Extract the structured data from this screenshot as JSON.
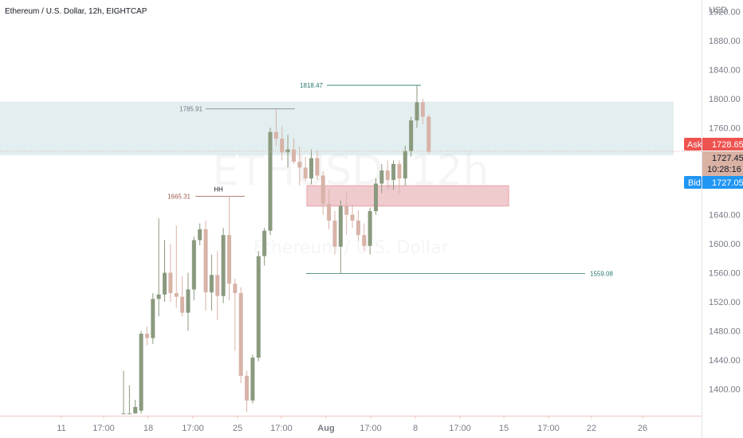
{
  "header": {
    "symbol_title": "Ethereum / U.S. Dollar, 12h, EIGHTCAP",
    "currency": "USD"
  },
  "watermark": {
    "symbol": "ETHUSD, 12h",
    "description": "Ethereum / U.S. Dollar"
  },
  "price_tags": {
    "ask_label": "Ask",
    "ask_value": "1728.65",
    "last_value": "1727.45",
    "countdown": "10:28:16",
    "bid_label": "Bid",
    "bid_value": "1727.05"
  },
  "colors": {
    "up": "#8a9a7e",
    "down": "#d8b3a8",
    "resistance_zone": "#d8e8ea",
    "support_zone": "#eec3c6",
    "ask": "#ef5350",
    "bid": "#2196f3",
    "last": "#d9b2a4"
  },
  "chart_data": {
    "type": "candlestick",
    "title": "Ethereum / U.S. Dollar, 12h, EIGHTCAP",
    "ylabel": "USD",
    "ylim": [
      1363,
      1936
    ],
    "y_ticks": [
      1400,
      1440,
      1480,
      1520,
      1560,
      1600,
      1640,
      1680,
      1720,
      1760,
      1800,
      1840,
      1880,
      1920
    ],
    "x_labels": [
      "11",
      "17:00",
      "18",
      "17:00",
      "25",
      "17:00",
      "Aug",
      "17:00",
      "8",
      "17:00",
      "15",
      "17:00",
      "22",
      "26"
    ],
    "candles": [
      {
        "o": 1366,
        "h": 1425,
        "l": 1366,
        "c": 1366
      },
      {
        "o": 1366,
        "h": 1405,
        "l": 1366,
        "c": 1366
      },
      {
        "o": 1366,
        "h": 1385,
        "l": 1366,
        "c": 1375
      },
      {
        "o": 1370,
        "h": 1480,
        "l": 1366,
        "c": 1476
      },
      {
        "o": 1476,
        "h": 1486,
        "l": 1460,
        "c": 1470
      },
      {
        "o": 1470,
        "h": 1532,
        "l": 1462,
        "c": 1524
      },
      {
        "o": 1524,
        "h": 1635,
        "l": 1500,
        "c": 1530
      },
      {
        "o": 1530,
        "h": 1605,
        "l": 1520,
        "c": 1560
      },
      {
        "o": 1560,
        "h": 1600,
        "l": 1520,
        "c": 1532
      },
      {
        "o": 1532,
        "h": 1625,
        "l": 1512,
        "c": 1527
      },
      {
        "o": 1527,
        "h": 1555,
        "l": 1500,
        "c": 1505
      },
      {
        "o": 1505,
        "h": 1560,
        "l": 1480,
        "c": 1537
      },
      {
        "o": 1537,
        "h": 1610,
        "l": 1522,
        "c": 1605
      },
      {
        "o": 1605,
        "h": 1628,
        "l": 1598,
        "c": 1620
      },
      {
        "o": 1620,
        "h": 1632,
        "l": 1508,
        "c": 1533
      },
      {
        "o": 1533,
        "h": 1585,
        "l": 1508,
        "c": 1557
      },
      {
        "o": 1557,
        "h": 1590,
        "l": 1495,
        "c": 1528
      },
      {
        "o": 1528,
        "h": 1622,
        "l": 1518,
        "c": 1612
      },
      {
        "o": 1612,
        "h": 1665,
        "l": 1522,
        "c": 1545
      },
      {
        "o": 1545,
        "h": 1552,
        "l": 1452,
        "c": 1532
      },
      {
        "o": 1532,
        "h": 1540,
        "l": 1408,
        "c": 1418
      },
      {
        "o": 1418,
        "h": 1425,
        "l": 1368,
        "c": 1384
      },
      {
        "o": 1384,
        "h": 1447,
        "l": 1380,
        "c": 1443
      },
      {
        "o": 1443,
        "h": 1590,
        "l": 1438,
        "c": 1583
      },
      {
        "o": 1583,
        "h": 1622,
        "l": 1570,
        "c": 1618
      },
      {
        "o": 1618,
        "h": 1760,
        "l": 1612,
        "c": 1754
      },
      {
        "o": 1754,
        "h": 1786,
        "l": 1735,
        "c": 1745
      },
      {
        "o": 1745,
        "h": 1762,
        "l": 1715,
        "c": 1726
      },
      {
        "o": 1726,
        "h": 1750,
        "l": 1705,
        "c": 1730
      },
      {
        "o": 1730,
        "h": 1745,
        "l": 1710,
        "c": 1713
      },
      {
        "o": 1713,
        "h": 1734,
        "l": 1680,
        "c": 1705
      },
      {
        "o": 1705,
        "h": 1720,
        "l": 1686,
        "c": 1690
      },
      {
        "o": 1690,
        "h": 1730,
        "l": 1682,
        "c": 1718
      },
      {
        "o": 1718,
        "h": 1728,
        "l": 1688,
        "c": 1694
      },
      {
        "o": 1694,
        "h": 1700,
        "l": 1640,
        "c": 1655
      },
      {
        "o": 1655,
        "h": 1675,
        "l": 1620,
        "c": 1632
      },
      {
        "o": 1632,
        "h": 1645,
        "l": 1585,
        "c": 1596
      },
      {
        "o": 1596,
        "h": 1660,
        "l": 1559,
        "c": 1652
      },
      {
        "o": 1652,
        "h": 1670,
        "l": 1612,
        "c": 1640
      },
      {
        "o": 1640,
        "h": 1655,
        "l": 1622,
        "c": 1632
      },
      {
        "o": 1632,
        "h": 1646,
        "l": 1604,
        "c": 1612
      },
      {
        "o": 1612,
        "h": 1628,
        "l": 1590,
        "c": 1597
      },
      {
        "o": 1597,
        "h": 1650,
        "l": 1585,
        "c": 1645
      },
      {
        "o": 1645,
        "h": 1690,
        "l": 1640,
        "c": 1683
      },
      {
        "o": 1683,
        "h": 1710,
        "l": 1670,
        "c": 1701
      },
      {
        "o": 1701,
        "h": 1715,
        "l": 1675,
        "c": 1688
      },
      {
        "o": 1688,
        "h": 1715,
        "l": 1674,
        "c": 1710
      },
      {
        "o": 1710,
        "h": 1715,
        "l": 1668,
        "c": 1690
      },
      {
        "o": 1690,
        "h": 1735,
        "l": 1680,
        "c": 1728
      },
      {
        "o": 1728,
        "h": 1775,
        "l": 1720,
        "c": 1770
      },
      {
        "o": 1770,
        "h": 1818,
        "l": 1760,
        "c": 1795
      },
      {
        "o": 1795,
        "h": 1800,
        "l": 1765,
        "c": 1775
      },
      {
        "o": 1775,
        "h": 1778,
        "l": 1724,
        "c": 1727
      }
    ],
    "zones": [
      {
        "name": "resistance",
        "from": 1722,
        "to": 1796
      },
      {
        "name": "support",
        "from": 1652,
        "to": 1680
      }
    ],
    "annotations": [
      {
        "text": "1818.47",
        "value": 1818.47
      },
      {
        "text": "1785.91",
        "value": 1785.91
      },
      {
        "text": "1665.31",
        "value": 1665.31
      },
      {
        "text": "HH",
        "value": 1665.31
      },
      {
        "text": "1559.08",
        "value": 1559.08
      }
    ],
    "grid": true
  }
}
